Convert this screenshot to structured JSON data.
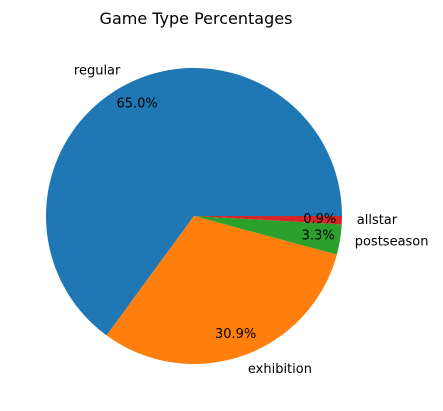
{
  "chart_data": {
    "type": "pie",
    "title": "Game Type Percentages",
    "start_angle_deg": 0,
    "direction": "counterclockwise",
    "labels": [
      "regular",
      "exhibition",
      "postseason",
      "allstar"
    ],
    "values": [
      65.0,
      30.9,
      3.3,
      0.9
    ],
    "percent_labels": [
      "65.0%",
      "30.9%",
      "3.3%",
      "0.9%"
    ],
    "colors": [
      "#1f77b4",
      "#ff7f0e",
      "#2ca02c",
      "#d62728"
    ]
  }
}
